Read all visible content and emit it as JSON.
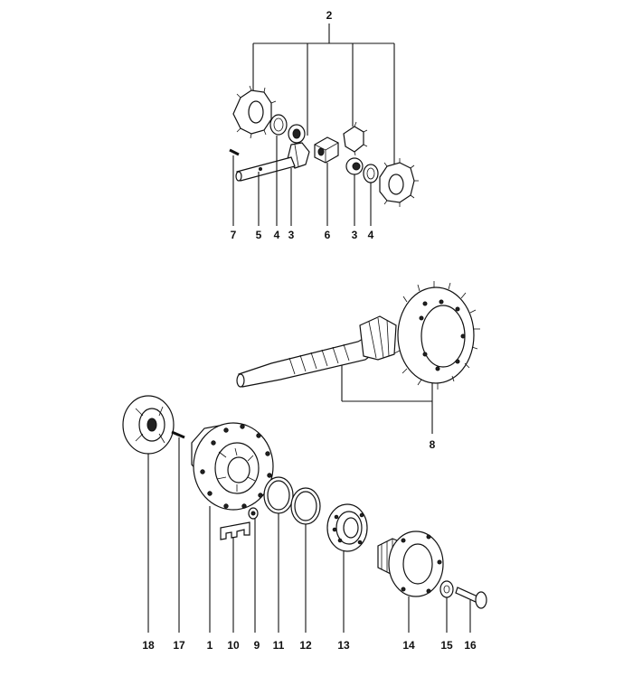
{
  "diagram": {
    "callouts": {
      "c1": "1",
      "c2": "2",
      "c3a": "3",
      "c3b": "3",
      "c4a": "4",
      "c4b": "4",
      "c5": "5",
      "c6": "6",
      "c7": "7",
      "c8": "8",
      "c9": "9",
      "c10": "10",
      "c11": "11",
      "c12": "12",
      "c13": "13",
      "c14": "14",
      "c15": "15",
      "c16": "16",
      "c17": "17",
      "c18": "18"
    }
  }
}
